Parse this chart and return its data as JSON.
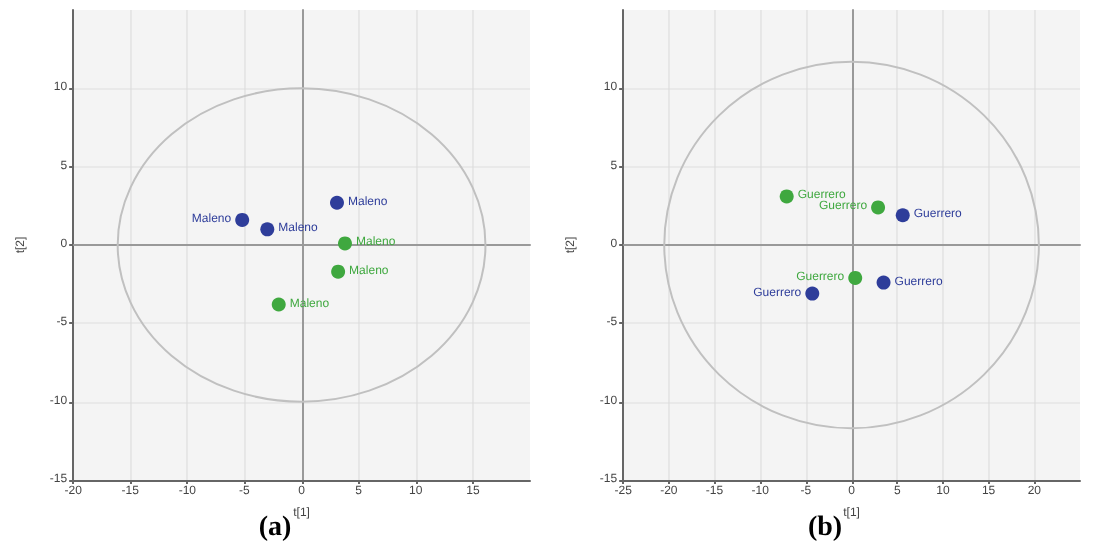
{
  "chart_data": [
    {
      "type": "scatter",
      "title": "(a)",
      "xlabel": "t[1]",
      "ylabel": "t[2]",
      "xlim": [
        -20,
        20
      ],
      "ylim": [
        -15,
        15
      ],
      "xticks": [
        -20,
        -15,
        -10,
        -5,
        0,
        5,
        10,
        15
      ],
      "yticks": [
        -15,
        -10,
        -5,
        0,
        5,
        10
      ],
      "grid": true,
      "marker": "circle",
      "series": [
        {
          "color": "#2e3d9a",
          "x": [
            -5.2,
            -3.0,
            3.1
          ],
          "values": [
            1.6,
            1.0,
            2.7
          ],
          "value_labels": [
            "Maleno",
            "Maleno",
            "Maleno"
          ]
        },
        {
          "color": "#3fa83f",
          "x": [
            3.8,
            3.2,
            -2.0
          ],
          "values": [
            0.1,
            -1.7,
            -3.8
          ],
          "value_labels": [
            "Maleno",
            "Maleno",
            "Maleno"
          ]
        }
      ]
    },
    {
      "type": "scatter",
      "title": "(b)",
      "xlabel": "t[1]",
      "ylabel": "t[2]",
      "xlim": [
        -25,
        25
      ],
      "ylim": [
        -15,
        15
      ],
      "xticks": [
        -25,
        -20,
        -15,
        -10,
        -5,
        0,
        5,
        10,
        15,
        20
      ],
      "yticks": [
        -15,
        -10,
        -5,
        0,
        5,
        10
      ],
      "grid": true,
      "marker": "circle",
      "series": [
        {
          "color": "#3fa83f",
          "x": [
            -7.1,
            2.9,
            0.4
          ],
          "values": [
            3.1,
            2.4,
            -2.1
          ],
          "value_labels": [
            "Guerrero",
            "Guerrero",
            "Guerrero"
          ]
        },
        {
          "color": "#2e3d9a",
          "x": [
            5.6,
            3.5,
            -4.3
          ],
          "values": [
            1.9,
            -2.4,
            -3.1
          ],
          "value_labels": [
            "Guerrero",
            "Guerrero",
            "Guerrero"
          ]
        }
      ]
    }
  ]
}
